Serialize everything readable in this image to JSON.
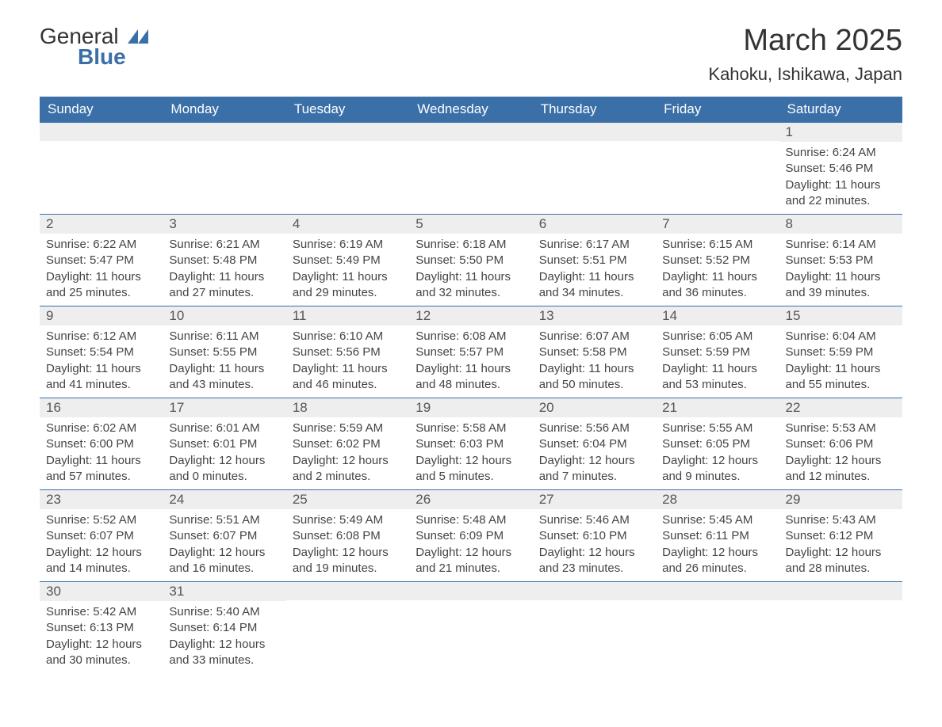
{
  "logo": {
    "text_general": "General",
    "text_blue": "Blue",
    "shape_color": "#3a6fa8"
  },
  "header": {
    "month_title": "March 2025",
    "location": "Kahoku, Ishikawa, Japan"
  },
  "colors": {
    "header_bg": "#3a6fa8",
    "header_text": "#ffffff",
    "day_number_bg": "#eeeeee",
    "text": "#444444",
    "border": "#3a6fa8"
  },
  "weekdays": [
    "Sunday",
    "Monday",
    "Tuesday",
    "Wednesday",
    "Thursday",
    "Friday",
    "Saturday"
  ],
  "weeks": [
    [
      {
        "empty": true
      },
      {
        "empty": true
      },
      {
        "empty": true
      },
      {
        "empty": true
      },
      {
        "empty": true
      },
      {
        "empty": true
      },
      {
        "day": "1",
        "sunrise": "Sunrise: 6:24 AM",
        "sunset": "Sunset: 5:46 PM",
        "daylight1": "Daylight: 11 hours",
        "daylight2": "and 22 minutes."
      }
    ],
    [
      {
        "day": "2",
        "sunrise": "Sunrise: 6:22 AM",
        "sunset": "Sunset: 5:47 PM",
        "daylight1": "Daylight: 11 hours",
        "daylight2": "and 25 minutes."
      },
      {
        "day": "3",
        "sunrise": "Sunrise: 6:21 AM",
        "sunset": "Sunset: 5:48 PM",
        "daylight1": "Daylight: 11 hours",
        "daylight2": "and 27 minutes."
      },
      {
        "day": "4",
        "sunrise": "Sunrise: 6:19 AM",
        "sunset": "Sunset: 5:49 PM",
        "daylight1": "Daylight: 11 hours",
        "daylight2": "and 29 minutes."
      },
      {
        "day": "5",
        "sunrise": "Sunrise: 6:18 AM",
        "sunset": "Sunset: 5:50 PM",
        "daylight1": "Daylight: 11 hours",
        "daylight2": "and 32 minutes."
      },
      {
        "day": "6",
        "sunrise": "Sunrise: 6:17 AM",
        "sunset": "Sunset: 5:51 PM",
        "daylight1": "Daylight: 11 hours",
        "daylight2": "and 34 minutes."
      },
      {
        "day": "7",
        "sunrise": "Sunrise: 6:15 AM",
        "sunset": "Sunset: 5:52 PM",
        "daylight1": "Daylight: 11 hours",
        "daylight2": "and 36 minutes."
      },
      {
        "day": "8",
        "sunrise": "Sunrise: 6:14 AM",
        "sunset": "Sunset: 5:53 PM",
        "daylight1": "Daylight: 11 hours",
        "daylight2": "and 39 minutes."
      }
    ],
    [
      {
        "day": "9",
        "sunrise": "Sunrise: 6:12 AM",
        "sunset": "Sunset: 5:54 PM",
        "daylight1": "Daylight: 11 hours",
        "daylight2": "and 41 minutes."
      },
      {
        "day": "10",
        "sunrise": "Sunrise: 6:11 AM",
        "sunset": "Sunset: 5:55 PM",
        "daylight1": "Daylight: 11 hours",
        "daylight2": "and 43 minutes."
      },
      {
        "day": "11",
        "sunrise": "Sunrise: 6:10 AM",
        "sunset": "Sunset: 5:56 PM",
        "daylight1": "Daylight: 11 hours",
        "daylight2": "and 46 minutes."
      },
      {
        "day": "12",
        "sunrise": "Sunrise: 6:08 AM",
        "sunset": "Sunset: 5:57 PM",
        "daylight1": "Daylight: 11 hours",
        "daylight2": "and 48 minutes."
      },
      {
        "day": "13",
        "sunrise": "Sunrise: 6:07 AM",
        "sunset": "Sunset: 5:58 PM",
        "daylight1": "Daylight: 11 hours",
        "daylight2": "and 50 minutes."
      },
      {
        "day": "14",
        "sunrise": "Sunrise: 6:05 AM",
        "sunset": "Sunset: 5:59 PM",
        "daylight1": "Daylight: 11 hours",
        "daylight2": "and 53 minutes."
      },
      {
        "day": "15",
        "sunrise": "Sunrise: 6:04 AM",
        "sunset": "Sunset: 5:59 PM",
        "daylight1": "Daylight: 11 hours",
        "daylight2": "and 55 minutes."
      }
    ],
    [
      {
        "day": "16",
        "sunrise": "Sunrise: 6:02 AM",
        "sunset": "Sunset: 6:00 PM",
        "daylight1": "Daylight: 11 hours",
        "daylight2": "and 57 minutes."
      },
      {
        "day": "17",
        "sunrise": "Sunrise: 6:01 AM",
        "sunset": "Sunset: 6:01 PM",
        "daylight1": "Daylight: 12 hours",
        "daylight2": "and 0 minutes."
      },
      {
        "day": "18",
        "sunrise": "Sunrise: 5:59 AM",
        "sunset": "Sunset: 6:02 PM",
        "daylight1": "Daylight: 12 hours",
        "daylight2": "and 2 minutes."
      },
      {
        "day": "19",
        "sunrise": "Sunrise: 5:58 AM",
        "sunset": "Sunset: 6:03 PM",
        "daylight1": "Daylight: 12 hours",
        "daylight2": "and 5 minutes."
      },
      {
        "day": "20",
        "sunrise": "Sunrise: 5:56 AM",
        "sunset": "Sunset: 6:04 PM",
        "daylight1": "Daylight: 12 hours",
        "daylight2": "and 7 minutes."
      },
      {
        "day": "21",
        "sunrise": "Sunrise: 5:55 AM",
        "sunset": "Sunset: 6:05 PM",
        "daylight1": "Daylight: 12 hours",
        "daylight2": "and 9 minutes."
      },
      {
        "day": "22",
        "sunrise": "Sunrise: 5:53 AM",
        "sunset": "Sunset: 6:06 PM",
        "daylight1": "Daylight: 12 hours",
        "daylight2": "and 12 minutes."
      }
    ],
    [
      {
        "day": "23",
        "sunrise": "Sunrise: 5:52 AM",
        "sunset": "Sunset: 6:07 PM",
        "daylight1": "Daylight: 12 hours",
        "daylight2": "and 14 minutes."
      },
      {
        "day": "24",
        "sunrise": "Sunrise: 5:51 AM",
        "sunset": "Sunset: 6:07 PM",
        "daylight1": "Daylight: 12 hours",
        "daylight2": "and 16 minutes."
      },
      {
        "day": "25",
        "sunrise": "Sunrise: 5:49 AM",
        "sunset": "Sunset: 6:08 PM",
        "daylight1": "Daylight: 12 hours",
        "daylight2": "and 19 minutes."
      },
      {
        "day": "26",
        "sunrise": "Sunrise: 5:48 AM",
        "sunset": "Sunset: 6:09 PM",
        "daylight1": "Daylight: 12 hours",
        "daylight2": "and 21 minutes."
      },
      {
        "day": "27",
        "sunrise": "Sunrise: 5:46 AM",
        "sunset": "Sunset: 6:10 PM",
        "daylight1": "Daylight: 12 hours",
        "daylight2": "and 23 minutes."
      },
      {
        "day": "28",
        "sunrise": "Sunrise: 5:45 AM",
        "sunset": "Sunset: 6:11 PM",
        "daylight1": "Daylight: 12 hours",
        "daylight2": "and 26 minutes."
      },
      {
        "day": "29",
        "sunrise": "Sunrise: 5:43 AM",
        "sunset": "Sunset: 6:12 PM",
        "daylight1": "Daylight: 12 hours",
        "daylight2": "and 28 minutes."
      }
    ],
    [
      {
        "day": "30",
        "sunrise": "Sunrise: 5:42 AM",
        "sunset": "Sunset: 6:13 PM",
        "daylight1": "Daylight: 12 hours",
        "daylight2": "and 30 minutes."
      },
      {
        "day": "31",
        "sunrise": "Sunrise: 5:40 AM",
        "sunset": "Sunset: 6:14 PM",
        "daylight1": "Daylight: 12 hours",
        "daylight2": "and 33 minutes."
      },
      {
        "empty": true
      },
      {
        "empty": true
      },
      {
        "empty": true
      },
      {
        "empty": true
      },
      {
        "empty": true
      }
    ]
  ]
}
